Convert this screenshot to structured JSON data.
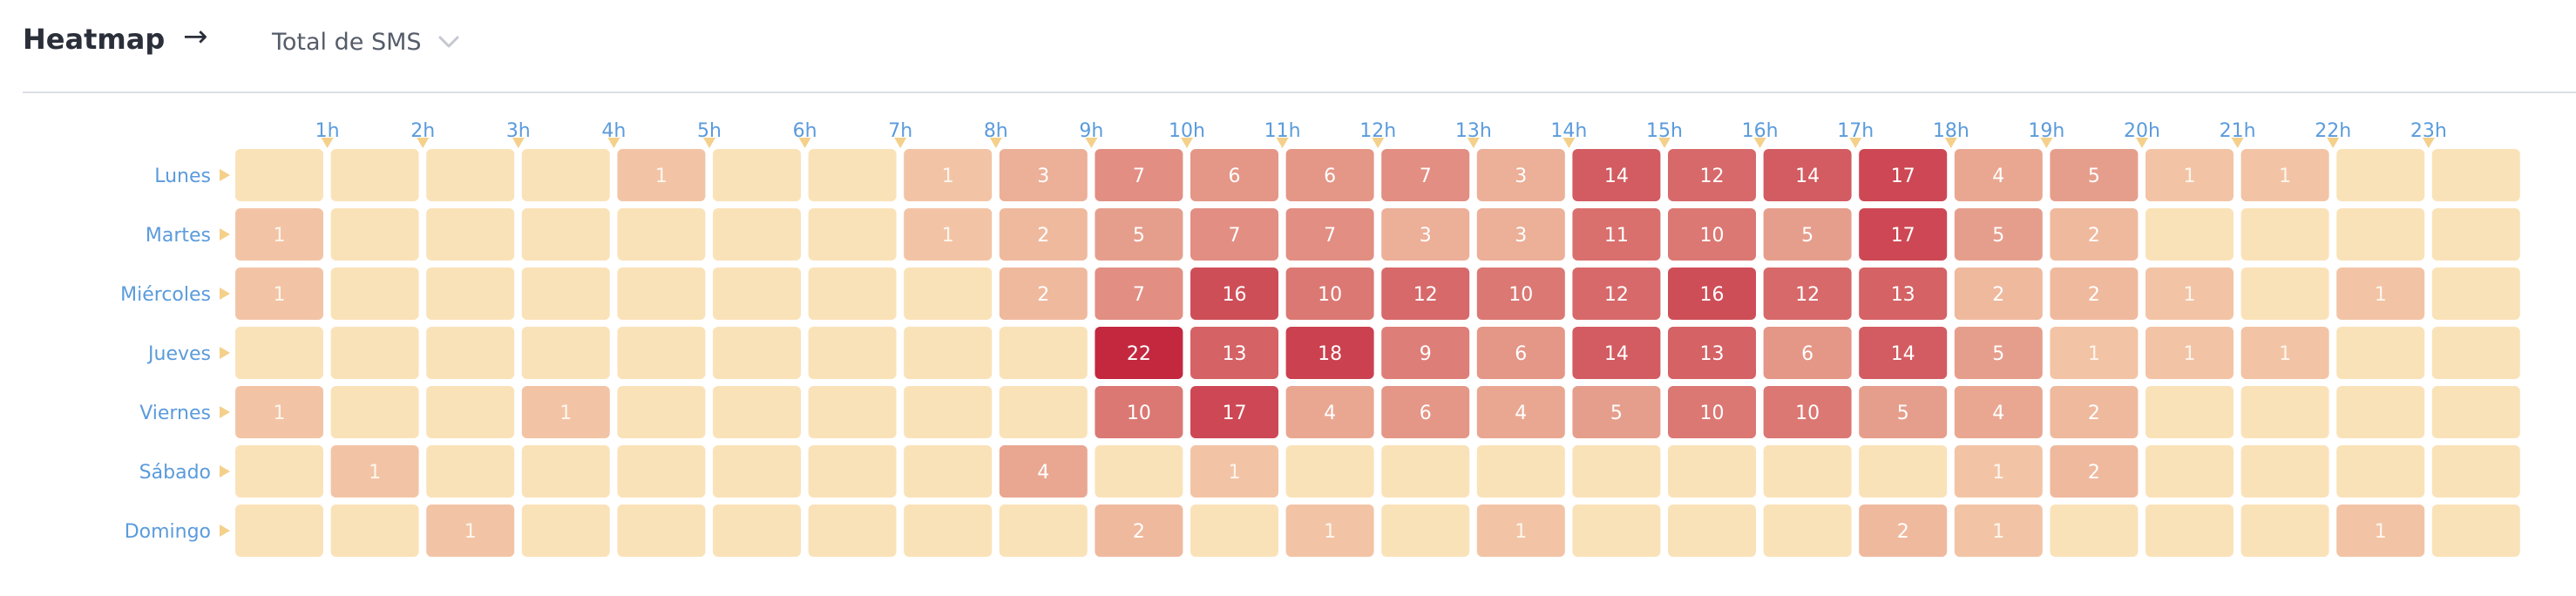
{
  "header": {
    "title": "Heatmap",
    "arrow": "→",
    "metric_select": {
      "selected": "Total de SMS"
    }
  },
  "colors": {
    "empty": "#fae2b8",
    "low": "#f6d2ae",
    "high": "#c3283f",
    "label": "#5b9bdc",
    "marker": "#f4d08a",
    "cell_text_dark": "#ffffff",
    "cell_text_light": "#fdf6ee"
  },
  "icons": {
    "dropdown": "chevron-down-icon",
    "row_marker": "triangle-right-icon",
    "column_marker": "triangle-down-icon"
  },
  "chart_data": {
    "type": "heatmap",
    "x_labels": [
      "1h",
      "2h",
      "3h",
      "4h",
      "5h",
      "6h",
      "7h",
      "8h",
      "9h",
      "10h",
      "11h",
      "12h",
      "13h",
      "14h",
      "15h",
      "16h",
      "17h",
      "18h",
      "19h",
      "20h",
      "21h",
      "22h",
      "23h"
    ],
    "y_labels": [
      "Lunes",
      "Martes",
      "Miércoles",
      "Jueves",
      "Viernes",
      "Sábado",
      "Domingo"
    ],
    "columns": 24,
    "values": [
      [
        0,
        0,
        0,
        0,
        1,
        0,
        0,
        1,
        3,
        7,
        6,
        6,
        7,
        3,
        14,
        12,
        14,
        17,
        4,
        5,
        1,
        1,
        0,
        0
      ],
      [
        1,
        0,
        0,
        0,
        0,
        0,
        0,
        1,
        2,
        5,
        7,
        7,
        3,
        3,
        11,
        10,
        5,
        17,
        5,
        2,
        0,
        0,
        0,
        0
      ],
      [
        1,
        0,
        0,
        0,
        0,
        0,
        0,
        0,
        2,
        7,
        16,
        10,
        12,
        10,
        12,
        16,
        12,
        13,
        2,
        2,
        1,
        0,
        1,
        0
      ],
      [
        0,
        0,
        0,
        0,
        0,
        0,
        0,
        0,
        0,
        22,
        13,
        18,
        9,
        6,
        14,
        13,
        6,
        14,
        5,
        1,
        1,
        1,
        0,
        0
      ],
      [
        1,
        0,
        0,
        1,
        0,
        0,
        0,
        0,
        0,
        10,
        17,
        4,
        6,
        4,
        5,
        10,
        10,
        5,
        4,
        2,
        0,
        0,
        0,
        0
      ],
      [
        0,
        1,
        0,
        0,
        0,
        0,
        0,
        0,
        4,
        0,
        1,
        0,
        0,
        0,
        0,
        0,
        0,
        0,
        1,
        2,
        0,
        0,
        0,
        0
      ],
      [
        0,
        0,
        1,
        0,
        0,
        0,
        0,
        0,
        0,
        2,
        0,
        1,
        0,
        1,
        0,
        0,
        0,
        2,
        1,
        0,
        0,
        0,
        1,
        0
      ]
    ],
    "value_range": [
      0,
      22
    ]
  }
}
